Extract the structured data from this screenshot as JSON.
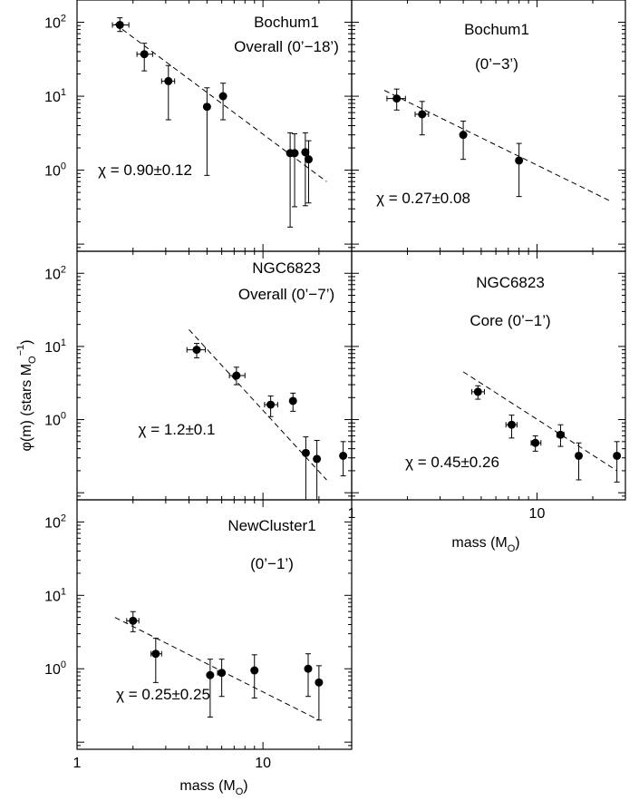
{
  "ylabel": "φ(m) (stars M",
  "ylabel_sub": "O",
  "ylabel_sup": "−1",
  "ylabel_close": ")",
  "xlabel": "mass (M",
  "xlabel_sub": "O",
  "xlabel_close": ")",
  "chart_data": [
    {
      "type": "scatter",
      "x_scale": "log",
      "y_scale": "log",
      "xlim": [
        1,
        30
      ],
      "ylim": [
        0.08,
        200
      ],
      "labels": [
        "Bochum1",
        "Overall (0’−18’)"
      ],
      "fit_label": "χ = 0.90±0.12",
      "fit_line": {
        "x": [
          1.6,
          22
        ],
        "y": [
          95,
          0.7
        ]
      },
      "points": [
        {
          "x": 1.7,
          "y": 92,
          "xerr": [
            1.55,
            1.9
          ],
          "yerr": [
            75,
            115
          ]
        },
        {
          "x": 2.3,
          "y": 37,
          "xerr": [
            2.1,
            2.55
          ],
          "yerr": [
            22,
            52
          ]
        },
        {
          "x": 3.1,
          "y": 16,
          "xerr": [
            2.85,
            3.35
          ],
          "yerr": [
            4.8,
            26
          ]
        },
        {
          "x": 5.0,
          "y": 7.2,
          "xerr": [
            5.0,
            5.0
          ],
          "yerr": [
            0.85,
            13
          ]
        },
        {
          "x": 6.1,
          "y": 10.0,
          "xerr": [
            6.1,
            6.1
          ],
          "yerr": [
            4.8,
            15
          ]
        },
        {
          "x": 14.0,
          "y": 1.7,
          "xerr": [
            14.0,
            14.0
          ],
          "yerr": [
            0.17,
            3.2
          ]
        },
        {
          "x": 14.8,
          "y": 1.7,
          "xerr": [
            14.8,
            14.8
          ],
          "yerr": [
            0.32,
            3.1
          ]
        },
        {
          "x": 16.9,
          "y": 1.75,
          "xerr": [
            16.9,
            16.9
          ],
          "yerr": [
            0.33,
            3.2
          ]
        },
        {
          "x": 17.6,
          "y": 1.4,
          "xerr": [
            17.6,
            17.6
          ],
          "yerr": [
            0.36,
            2.5
          ]
        }
      ]
    },
    {
      "type": "scatter",
      "x_scale": "log",
      "y_scale": "log",
      "xlim": [
        1,
        30
      ],
      "ylim": [
        0.08,
        200
      ],
      "labels": [
        "Bochum1",
        "(0’−3’)"
      ],
      "fit_label": "χ = 0.27±0.08",
      "fit_line": {
        "x": [
          1.5,
          25
        ],
        "y": [
          12,
          0.38
        ]
      },
      "points": [
        {
          "x": 1.75,
          "y": 9.3,
          "xerr": [
            1.55,
            1.95
          ],
          "yerr": [
            6.5,
            12.5
          ]
        },
        {
          "x": 2.4,
          "y": 5.7,
          "xerr": [
            2.2,
            2.6
          ],
          "yerr": [
            3.0,
            8.5
          ]
        },
        {
          "x": 4.0,
          "y": 3.0,
          "xerr": [
            4.0,
            4.0
          ],
          "yerr": [
            1.4,
            4.6
          ]
        },
        {
          "x": 8.0,
          "y": 1.35,
          "xerr": [
            8.0,
            8.0
          ],
          "yerr": [
            0.44,
            2.3
          ]
        }
      ]
    },
    {
      "type": "scatter",
      "x_scale": "log",
      "y_scale": "log",
      "xlim": [
        1,
        30
      ],
      "ylim": [
        0.08,
        200
      ],
      "labels": [
        "NGC6823",
        "Overall (0’−7’)"
      ],
      "fit_label": "χ = 1.2±0.1",
      "fit_line": {
        "x": [
          4.0,
          22
        ],
        "y": [
          17,
          0.15
        ]
      },
      "points": [
        {
          "x": 4.4,
          "y": 9.0,
          "xerr": [
            3.9,
            4.9
          ],
          "yerr": [
            7.0,
            11.0
          ]
        },
        {
          "x": 7.2,
          "y": 4.0,
          "xerr": [
            6.6,
            8.0
          ],
          "yerr": [
            3.0,
            5.2
          ]
        },
        {
          "x": 11.0,
          "y": 1.6,
          "xerr": [
            10.2,
            12.0
          ],
          "yerr": [
            1.1,
            2.1
          ]
        },
        {
          "x": 14.5,
          "y": 1.8,
          "xerr": [
            14.5,
            14.5
          ],
          "yerr": [
            1.3,
            2.3
          ]
        },
        {
          "x": 17.0,
          "y": 0.35,
          "xerr": [
            16.5,
            17.6
          ],
          "yerr": [
            0.08,
            0.58
          ]
        },
        {
          "x": 19.5,
          "y": 0.29,
          "xerr": [
            19.5,
            19.5
          ],
          "yerr": [
            0.08,
            0.52
          ]
        },
        {
          "x": 27.0,
          "y": 0.32,
          "xerr": [
            27.0,
            27.0
          ],
          "yerr": [
            0.17,
            0.5
          ]
        }
      ]
    },
    {
      "type": "scatter",
      "x_scale": "log",
      "y_scale": "log",
      "xlim": [
        1,
        30
      ],
      "ylim": [
        0.08,
        200
      ],
      "labels": [
        "NGC6823",
        "Core (0’−1’)"
      ],
      "fit_label": "χ = 0.45±0.26",
      "fit_line": {
        "x": [
          4.0,
          27
        ],
        "y": [
          4.5,
          0.2
        ]
      },
      "points": [
        {
          "x": 4.8,
          "y": 2.4,
          "xerr": [
            4.45,
            5.2
          ],
          "yerr": [
            1.9,
            2.9
          ]
        },
        {
          "x": 7.3,
          "y": 0.85,
          "xerr": [
            6.8,
            7.8
          ],
          "yerr": [
            0.56,
            1.15
          ]
        },
        {
          "x": 9.8,
          "y": 0.48,
          "xerr": [
            9.3,
            10.5
          ],
          "yerr": [
            0.37,
            0.6
          ]
        },
        {
          "x": 13.4,
          "y": 0.62,
          "xerr": [
            12.8,
            14.0
          ],
          "yerr": [
            0.43,
            0.85
          ]
        },
        {
          "x": 16.8,
          "y": 0.32,
          "xerr": [
            16.8,
            16.8
          ],
          "yerr": [
            0.15,
            0.48
          ]
        },
        {
          "x": 27.0,
          "y": 0.32,
          "xerr": [
            27.0,
            27.0
          ],
          "yerr": [
            0.14,
            0.5
          ]
        }
      ]
    },
    {
      "type": "scatter",
      "x_scale": "log",
      "y_scale": "log",
      "xlim": [
        1,
        30
      ],
      "ylim": [
        0.08,
        200
      ],
      "labels": [
        "NewCluster1",
        "(0’−1’)"
      ],
      "fit_label": "χ = 0.25±0.25",
      "fit_line": {
        "x": [
          1.6,
          20
        ],
        "y": [
          5.0,
          0.2
        ]
      },
      "points": [
        {
          "x": 2.0,
          "y": 4.5,
          "xerr": [
            1.85,
            2.15
          ],
          "yerr": [
            3.2,
            6.0
          ]
        },
        {
          "x": 2.65,
          "y": 1.6,
          "xerr": [
            2.5,
            2.85
          ],
          "yerr": [
            0.65,
            2.6
          ]
        },
        {
          "x": 5.2,
          "y": 0.82,
          "xerr": [
            5.2,
            5.2
          ],
          "yerr": [
            0.22,
            1.35
          ]
        },
        {
          "x": 6.0,
          "y": 0.88,
          "xerr": [
            5.7,
            6.2
          ],
          "yerr": [
            0.42,
            1.35
          ]
        },
        {
          "x": 9.0,
          "y": 0.95,
          "xerr": [
            9.0,
            9.0
          ],
          "yerr": [
            0.4,
            1.55
          ]
        },
        {
          "x": 17.5,
          "y": 1.0,
          "xerr": [
            17.5,
            17.5
          ],
          "yerr": [
            0.42,
            1.6
          ]
        },
        {
          "x": 20.0,
          "y": 0.65,
          "xerr": [
            20.0,
            20.0
          ],
          "yerr": [
            0.2,
            1.1
          ]
        }
      ]
    }
  ],
  "xticks": [
    "1",
    "10"
  ],
  "yticks": [
    {
      "base": "10",
      "exp": "2"
    },
    {
      "base": "10",
      "exp": "1"
    },
    {
      "base": "10",
      "exp": "0"
    }
  ]
}
